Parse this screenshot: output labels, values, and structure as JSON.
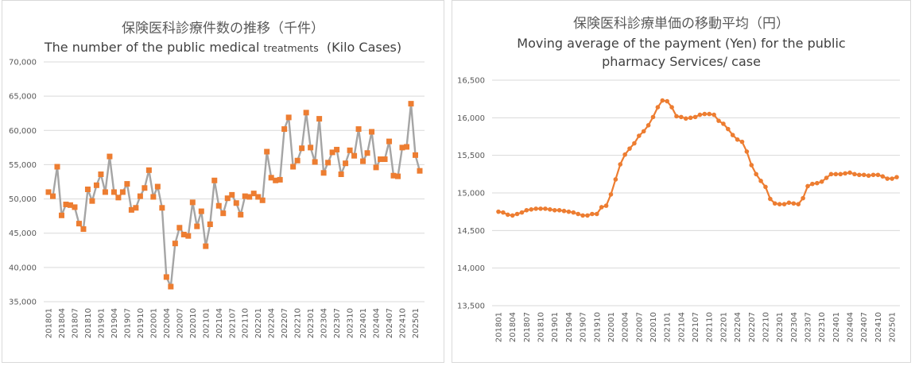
{
  "colors": {
    "series": "#ED7D31",
    "marker_left": "#ED7D31",
    "line_left": "#A5A5A5",
    "grid": "#D9D9D9"
  },
  "chart_data": [
    {
      "type": "line",
      "title": "保険医科診療件数の推移（千件）",
      "subtitle": "The number of the public medical",
      "subtitle_small": "treatments",
      "subtitle_tail": "(Kilo Cases)",
      "ylim": [
        35000,
        70000
      ],
      "yticks": [
        35000,
        40000,
        45000,
        50000,
        55000,
        60000,
        65000,
        70000
      ],
      "ytick_labels": [
        "35,000",
        "40,000",
        "45,000",
        "50,000",
        "55,000",
        "60,000",
        "65,000",
        "70,000"
      ],
      "xtick_labels": [
        "201801",
        "201804",
        "201807",
        "201810",
        "201901",
        "201904",
        "201907",
        "201910",
        "202001",
        "202004",
        "202007",
        "202010",
        "202101",
        "202104",
        "202107",
        "202110",
        "202201",
        "202204",
        "202207",
        "202210",
        "202301",
        "202304",
        "202307",
        "202310",
        "202401",
        "202404",
        "202407",
        "202410",
        "202501"
      ],
      "series": [
        {
          "values": [
            51000,
            50400,
            54700,
            47600,
            49200,
            49100,
            48800,
            46400,
            45600,
            51400,
            49700,
            52000,
            53600,
            51000,
            56200,
            51000,
            50200,
            51000,
            52200,
            48400,
            48700,
            50400,
            51600,
            54200,
            50300,
            51800,
            48700,
            38600,
            37200,
            43500,
            45800,
            44800,
            44600,
            49500,
            46000,
            48200,
            43100,
            46300,
            52700,
            49000,
            47900,
            50100,
            50600,
            49400,
            47700,
            50400,
            50300,
            50800,
            50300,
            49800,
            56900,
            53100,
            52700,
            52800,
            60200,
            61900,
            54700,
            55600,
            57400,
            62600,
            57500,
            55400,
            61700,
            53800,
            55300,
            56800,
            57200,
            53600,
            55200,
            57100,
            56300,
            60200,
            55500,
            56700,
            59800,
            54600,
            55800,
            55800,
            58400,
            53400,
            53300,
            57500,
            57600,
            63900,
            56400,
            54100
          ]
        }
      ]
    },
    {
      "type": "line",
      "title": "保険医科診療単価の移動平均（円）",
      "subtitle_line1": "Moving average of the payment (Yen) for the public",
      "subtitle_line2": "pharmacy Services/ case",
      "ylim": [
        13500,
        16500
      ],
      "yticks": [
        13500,
        14000,
        14500,
        15000,
        15500,
        16000,
        16500
      ],
      "ytick_labels": [
        "13,500",
        "14,000",
        "14,500",
        "15,000",
        "15,500",
        "16,000",
        "16,500"
      ],
      "xtick_labels": [
        "201801",
        "201804",
        "201807",
        "201810",
        "201901",
        "201904",
        "201907",
        "201910",
        "202001",
        "202004",
        "202007",
        "202010",
        "202101",
        "202104",
        "202107",
        "202110",
        "202201",
        "202204",
        "202207",
        "202210",
        "202301",
        "202304",
        "202307",
        "202310",
        "202401",
        "202404",
        "202407",
        "202410",
        "202501"
      ],
      "series": [
        {
          "values": [
            14750,
            14740,
            14710,
            14700,
            14720,
            14740,
            14770,
            14780,
            14790,
            14790,
            14790,
            14780,
            14770,
            14770,
            14760,
            14750,
            14740,
            14720,
            14700,
            14700,
            14720,
            14720,
            14810,
            14830,
            14980,
            15180,
            15380,
            15510,
            15590,
            15660,
            15760,
            15820,
            15900,
            16010,
            16140,
            16230,
            16220,
            16140,
            16020,
            16010,
            15990,
            16000,
            16010,
            16040,
            16050,
            16050,
            16040,
            15960,
            15920,
            15850,
            15770,
            15710,
            15680,
            15550,
            15370,
            15250,
            15160,
            15080,
            14920,
            14860,
            14850,
            14850,
            14870,
            14860,
            14850,
            14930,
            15090,
            15120,
            15130,
            15150,
            15200,
            15250,
            15250,
            15250,
            15260,
            15270,
            15250,
            15240,
            15240,
            15230,
            15240,
            15240,
            15220,
            15190,
            15190,
            15210
          ]
        }
      ]
    }
  ]
}
